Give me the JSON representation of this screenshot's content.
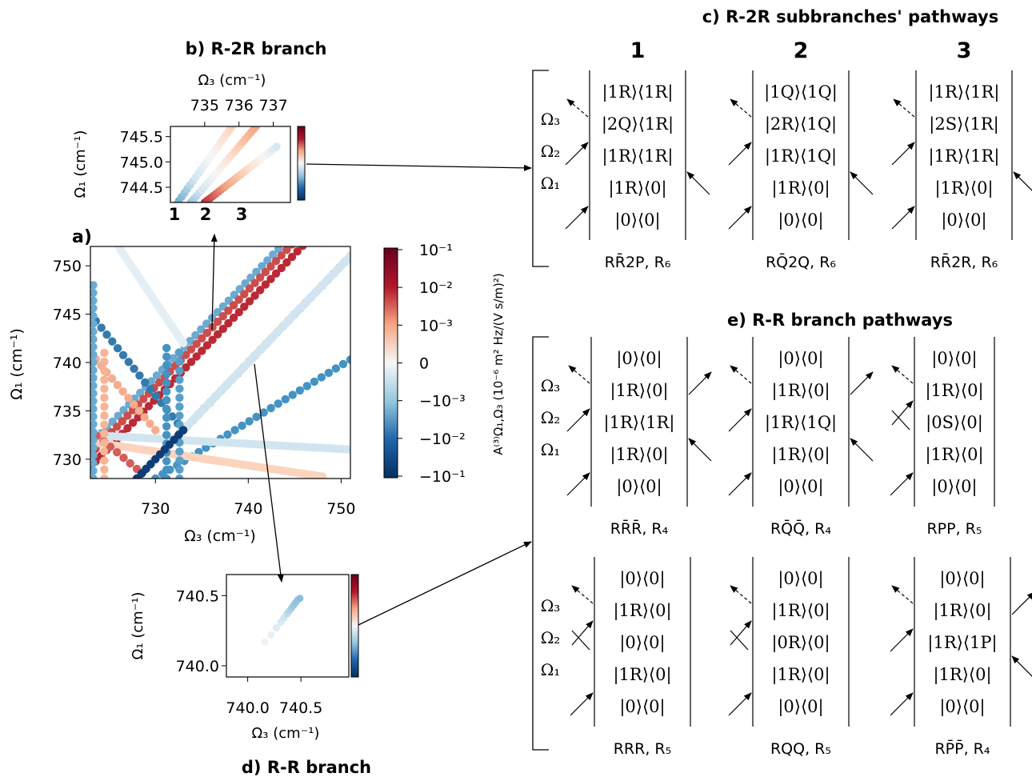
{
  "colors": {
    "neg_dark": "#08306b",
    "neg_mid": "#4393c3",
    "neg_light": "#d1e5f0",
    "zero": "#f7f7f7",
    "pos_light": "#fddbc7",
    "pos_mid": "#f4a582",
    "pos_dark": "#b2182b"
  },
  "panel_a": {
    "title": "a)",
    "xlabel": "Ω₃ (cm⁻¹)",
    "ylabel": "Ω₁ (cm⁻¹)",
    "xticks": [
      "730",
      "740",
      "750"
    ],
    "yticks": [
      "730",
      "735",
      "740",
      "745",
      "750"
    ],
    "colorbar_label": "A⁽³⁾Ω₁,Ω₃ (10⁻⁶ m² Hz/(V s/m)²)",
    "colorbar_ticks": [
      "10⁻¹",
      "10⁻²",
      "10⁻³",
      "0",
      "−10⁻³",
      "−10⁻²",
      "−10⁻¹"
    ]
  },
  "panel_b": {
    "title": "b) R-2R branch",
    "xlabel": "Ω₃ (cm⁻¹)",
    "ylabel": "Ω₁ (cm⁻¹)",
    "xticks": [
      "735",
      "736",
      "737"
    ],
    "yticks": [
      "745.5",
      "745.0",
      "744.5"
    ],
    "markers": [
      "1",
      "2",
      "3"
    ]
  },
  "panel_c": {
    "title": "c) R-2R subbranches' pathways",
    "columns": [
      {
        "num": "1",
        "states": [
          "|1R⟩⟨1R|",
          "|2Q⟩⟨1R|",
          "|1R⟩⟨1R|",
          "|1R⟩⟨0|",
          "|0⟩⟨0|"
        ],
        "caption": "RR̄2P, R₆"
      },
      {
        "num": "2",
        "states": [
          "|1Q⟩⟨1Q|",
          "|2R⟩⟨1Q|",
          "|1R⟩⟨1Q|",
          "|1R⟩⟨0|",
          "|0⟩⟨0|"
        ],
        "caption": "RQ̄2Q, R₆"
      },
      {
        "num": "3",
        "states": [
          "|1R⟩⟨1R|",
          "|2S⟩⟨1R|",
          "|1R⟩⟨1R|",
          "|1R⟩⟨0|",
          "|0⟩⟨0|"
        ],
        "caption": "RR̄2R, R₆"
      }
    ],
    "omegas": [
      "Ω₃",
      "Ω₂",
      "Ω₁"
    ]
  },
  "panel_d": {
    "title": "d) R-R branch",
    "xlabel": "Ω₃ (cm⁻¹)",
    "ylabel": "Ω₁ (cm⁻¹)",
    "xticks": [
      "740.0",
      "740.5"
    ],
    "yticks": [
      "740.5",
      "740.0"
    ]
  },
  "panel_e": {
    "title": "e) R-R branch pathways",
    "omegas": [
      "Ω₃",
      "Ω₂",
      "Ω₁"
    ],
    "top": [
      {
        "states": [
          "|0⟩⟨0|",
          "|1R⟩⟨0|",
          "|1R⟩⟨1R|",
          "|1R⟩⟨0|",
          "|0⟩⟨0|"
        ],
        "caption": "RR̄R̄, R₄"
      },
      {
        "states": [
          "|0⟩⟨0|",
          "|1R⟩⟨0|",
          "|1R⟩⟨1Q|",
          "|1R⟩⟨0|",
          "|0⟩⟨0|"
        ],
        "caption": "RQ̄Q̄, R₄"
      },
      {
        "states": [
          "|0⟩⟨0|",
          "|1R⟩⟨0|",
          "|0S⟩⟨0|",
          "|1R⟩⟨0|",
          "|0⟩⟨0|"
        ],
        "caption": "RPP, R₅"
      }
    ],
    "bottom": [
      {
        "states": [
          "|0⟩⟨0|",
          "|1R⟩⟨0|",
          "|0⟩⟨0|",
          "|1R⟩⟨0|",
          "|0⟩⟨0|"
        ],
        "caption": "RRR, R₅"
      },
      {
        "states": [
          "|0⟩⟨0|",
          "|1R⟩⟨0|",
          "|0R⟩⟨0|",
          "|1R⟩⟨0|",
          "|0⟩⟨0|"
        ],
        "caption": "RQQ, R₅"
      },
      {
        "states": [
          "|0⟩⟨0|",
          "|1R⟩⟨0|",
          "|1R⟩⟨1P|",
          "|1R⟩⟨0|",
          "|0⟩⟨0|"
        ],
        "caption": "RP̄P̄, R₄"
      }
    ]
  },
  "chart_data": [
    {
      "type": "scatter",
      "title": "a)",
      "xlabel": "Ω₃ (cm⁻¹)",
      "ylabel": "Ω₁ (cm⁻¹)",
      "xlim": [
        723,
        751
      ],
      "ylim": [
        728,
        752
      ],
      "color_scale": "symlog diverging, −10⁻¹ … 10⁻¹",
      "series": [
        {
          "from": [
            723,
            731.5
          ],
          "to": [
            751,
            759.5
          ],
          "level": -0.5,
          "step": 0.85
        },
        {
          "from": [
            723,
            730.5
          ],
          "to": [
            751,
            758.5
          ],
          "level": 0.85,
          "step": 0.8
        },
        {
          "from": [
            723,
            729.2
          ],
          "to": [
            751,
            757.2
          ],
          "level": 0.95,
          "step": 0.8
        },
        {
          "from": [
            728,
            728
          ],
          "to": [
            751,
            751
          ],
          "level": -0.85,
          "step": 0.85
        },
        {
          "from": [
            729,
            729
          ],
          "to": [
            751,
            751
          ],
          "level": -0.25,
          "step": 0.3
        },
        {
          "from": [
            730,
            728
          ],
          "to": [
            751,
            740.3
          ],
          "level": -0.6,
          "step": 0.9
        },
        {
          "from": [
            723,
            745
          ],
          "to": [
            733,
            733
          ],
          "level": -0.7,
          "step": 0.9
        },
        {
          "from": [
            723,
            741
          ],
          "to": [
            730,
            733
          ],
          "level": 0.55,
          "step": 0.9
        },
        {
          "from": [
            723,
            732.5
          ],
          "to": [
            751,
            731
          ],
          "level": -0.25,
          "step": 0.4
        },
        {
          "from": [
            723,
            731.8
          ],
          "to": [
            748,
            728.2
          ],
          "level": 0.3,
          "step": 0.4
        },
        {
          "from": [
            726,
            752
          ],
          "to": [
            733,
            742
          ],
          "level": -0.12,
          "step": 0.3
        },
        {
          "from": [
            723,
            733
          ],
          "to": [
            728,
            729
          ],
          "level": 0.8,
          "step": 0.9
        },
        {
          "from": [
            723.3,
            748
          ],
          "to": [
            723.3,
            728
          ],
          "level": -0.5,
          "step": 0.8
        },
        {
          "from": [
            724.5,
            741
          ],
          "to": [
            724.5,
            728
          ],
          "level": 0.5,
          "step": 0.9
        },
        {
          "from": [
            731.2,
            741.5
          ],
          "to": [
            731.2,
            728
          ],
          "level": -0.6,
          "step": 0.9
        },
        {
          "from": [
            732.6,
            741
          ],
          "to": [
            732.6,
            728
          ],
          "level": -0.55,
          "step": 0.9
        },
        {
          "from": [
            727,
            727
          ],
          "to": [
            733,
            733
          ],
          "level": -0.95,
          "step": 0.7
        }
      ]
    },
    {
      "type": "scatter",
      "title": "b) R-2R branch",
      "xlabel": "Ω₃ (cm⁻¹)",
      "ylabel": "Ω₁ (cm⁻¹)",
      "xlim": [
        734.0,
        737.5
      ],
      "ylim": [
        744.2,
        745.7
      ],
      "series": [
        {
          "name": "1",
          "from": [
            734.0,
            744.0
          ],
          "to": [
            735.8,
            745.7
          ],
          "level_from": -0.6,
          "level_to": 0.3,
          "step": 0.08
        },
        {
          "name": "2",
          "from": [
            734.6,
            744.2
          ],
          "to": [
            736.5,
            745.7
          ],
          "level_from": -0.4,
          "level_to": 0.6,
          "step": 0.08
        },
        {
          "name": "3",
          "from": [
            735.0,
            744.2
          ],
          "to": [
            737.1,
            745.3
          ],
          "level_from": 0.95,
          "level_to": -0.2,
          "step": 0.08
        }
      ]
    },
    {
      "type": "scatter",
      "title": "d) R-R branch",
      "xlabel": "Ω₃ (cm⁻¹)",
      "ylabel": "Ω₁ (cm⁻¹)",
      "xlim": [
        739.8,
        740.95
      ],
      "ylim": [
        739.92,
        740.65
      ],
      "series": [
        {
          "x": [
            740.16,
            740.22,
            740.27,
            740.31,
            740.34,
            740.37,
            740.39,
            740.41,
            740.43,
            740.45,
            740.47,
            740.49
          ],
          "y": [
            740.17,
            740.22,
            740.27,
            740.31,
            740.34,
            740.37,
            740.39,
            740.41,
            740.43,
            740.45,
            740.47,
            740.48
          ],
          "level": [
            -0.05,
            -0.1,
            -0.15,
            -0.2,
            -0.25,
            -0.3,
            -0.32,
            -0.35,
            -0.38,
            -0.4,
            -0.4,
            -0.42
          ]
        }
      ]
    }
  ]
}
